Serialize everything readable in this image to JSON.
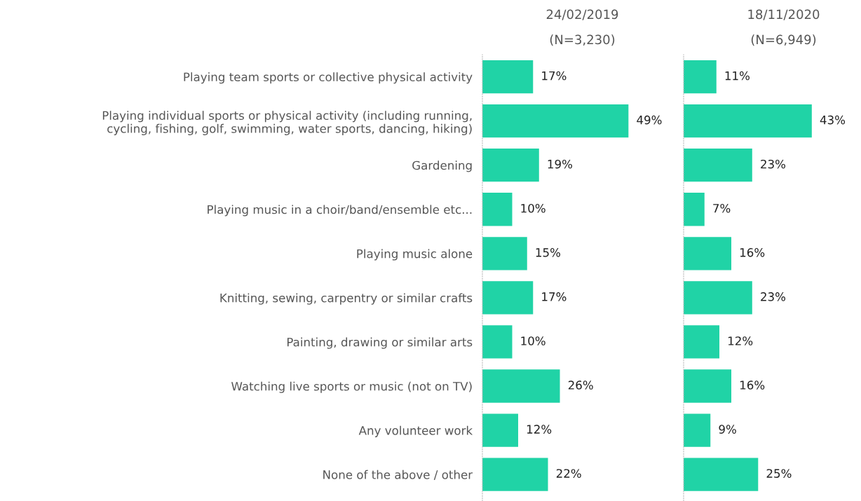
{
  "chart_data": [
    {
      "type": "bar",
      "orientation": "horizontal",
      "title": "24/02/2019",
      "subtitle": "(N=3,230)",
      "tick_labels": "y",
      "color": "#20d3a6",
      "categories": [
        "Playing team sports or collective physical activity",
        "Playing individual sports or physical activity (including running,\ncycling, fishing, golf, swimming, water sports, dancing, hiking)",
        "Gardening",
        "Playing music in a choir/band/ensemble etc...",
        "Playing music alone",
        "Knitting, sewing, carpentry or similar crafts",
        "Painting, drawing or similar arts",
        "Watching live sports or music (not on TV)",
        "Any volunteer work",
        "None of the above / other"
      ],
      "values": [
        17,
        49,
        19,
        10,
        15,
        17,
        10,
        26,
        12,
        22
      ],
      "value_labels": [
        "17%",
        "49%",
        "19%",
        "10%",
        "15%",
        "17%",
        "10%",
        "26%",
        "12%",
        "22%"
      ]
    },
    {
      "type": "bar",
      "orientation": "horizontal",
      "title": "18/11/2020",
      "subtitle": "(N=6,949)",
      "tick_labels": false,
      "color": "#20d3a6",
      "categories": [
        null,
        null,
        null,
        null,
        null,
        null,
        null,
        null,
        null,
        null
      ],
      "values": [
        11,
        43,
        23,
        7,
        16,
        23,
        12,
        16,
        9,
        25
      ],
      "value_labels": [
        "11%",
        "43%",
        "23%",
        "7%",
        "16%",
        "23%",
        "12%",
        "16%",
        "9%",
        "25%"
      ]
    }
  ]
}
